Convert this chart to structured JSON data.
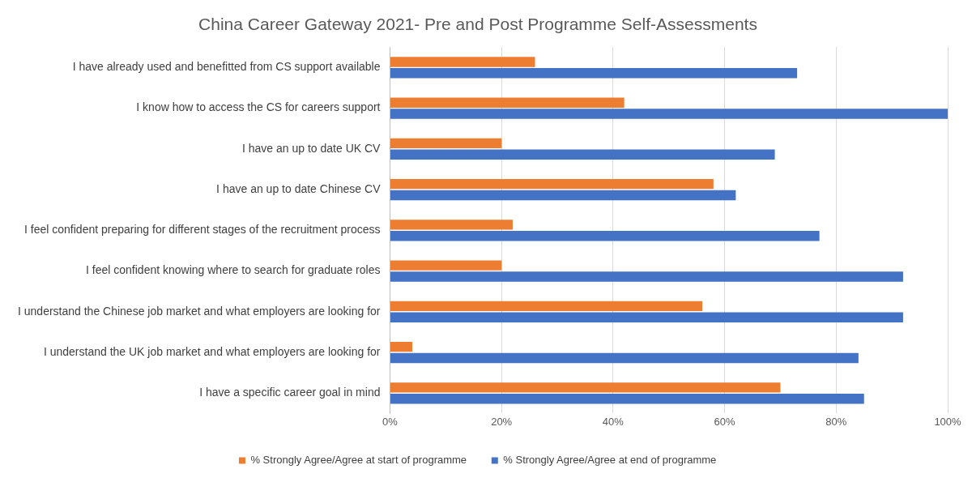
{
  "chart_data": {
    "type": "bar",
    "orientation": "horizontal",
    "title": "China Career Gateway 2021- Pre and Post Programme Self-Assessments",
    "categories": [
      "I have already used and benefitted from CS support available",
      "I know how to access the CS for careers support",
      "I have an up to date UK CV",
      "I have an up to date Chinese CV",
      "I feel confident preparing for different stages of the recruitment process",
      "I feel confident knowing where to search for graduate roles",
      "I understand the Chinese job market and what employers are looking for",
      "I understand the UK job market and what employers are looking for",
      "I have a specific career goal in mind"
    ],
    "series": [
      {
        "name": "% Strongly Agree/Agree at start of programme",
        "color": "#ed7d31",
        "values": [
          26,
          42,
          20,
          58,
          22,
          20,
          56,
          4,
          70
        ]
      },
      {
        "name": "% Strongly Agree/Agree at end of programme",
        "color": "#4472c4",
        "values": [
          73,
          100,
          69,
          62,
          77,
          92,
          92,
          84,
          85
        ]
      }
    ],
    "xlim": [
      0,
      100
    ],
    "xticks": [
      {
        "value": 0,
        "label": "0%"
      },
      {
        "value": 20,
        "label": "20%"
      },
      {
        "value": 40,
        "label": "40%"
      },
      {
        "value": 60,
        "label": "60%"
      },
      {
        "value": 80,
        "label": "80%"
      },
      {
        "value": 100,
        "label": "100%"
      }
    ],
    "grid": "x",
    "legend": "bottom"
  }
}
